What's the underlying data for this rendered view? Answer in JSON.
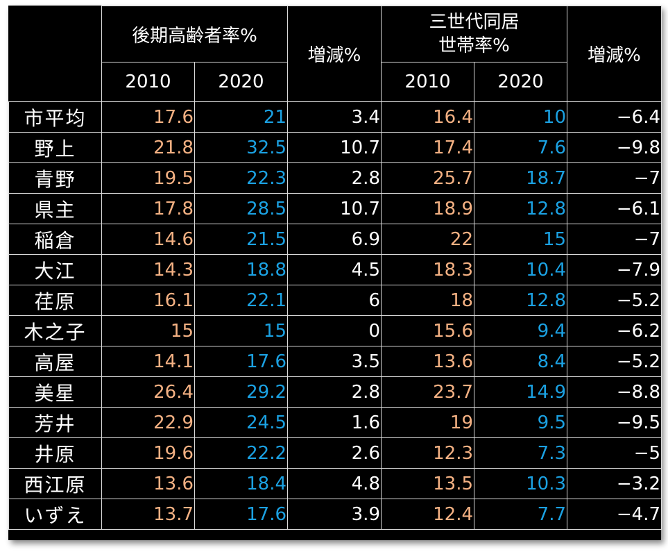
{
  "headers": {
    "group1": "後期高齢者率%",
    "change1": "増減%",
    "group2_line1": "三世代同居",
    "group2_line2": "世帯率%",
    "change2": "増減%",
    "year1": "2010",
    "year2": "2020",
    "year3": "2010",
    "year4": "2020"
  },
  "colors": {
    "background": "#000000",
    "text": "#ffffff",
    "year_2010": "#f4b183",
    "year_2020": "#1ba1e2",
    "grid": "#d9d9d9"
  },
  "rows": [
    {
      "name": "市平均",
      "a2010": "17.6",
      "a2020": "21",
      "achg": "3.4",
      "b2010": "16.4",
      "b2020": "10",
      "bchg": "−6.4"
    },
    {
      "name": "野上",
      "a2010": "21.8",
      "a2020": "32.5",
      "achg": "10.7",
      "b2010": "17.4",
      "b2020": "7.6",
      "bchg": "−9.8"
    },
    {
      "name": "青野",
      "a2010": "19.5",
      "a2020": "22.3",
      "achg": "2.8",
      "b2010": "25.7",
      "b2020": "18.7",
      "bchg": "−7"
    },
    {
      "name": "県主",
      "a2010": "17.8",
      "a2020": "28.5",
      "achg": "10.7",
      "b2010": "18.9",
      "b2020": "12.8",
      "bchg": "−6.1"
    },
    {
      "name": "稲倉",
      "a2010": "14.6",
      "a2020": "21.5",
      "achg": "6.9",
      "b2010": "22",
      "b2020": "15",
      "bchg": "−7"
    },
    {
      "name": "大江",
      "a2010": "14.3",
      "a2020": "18.8",
      "achg": "4.5",
      "b2010": "18.3",
      "b2020": "10.4",
      "bchg": "−7.9"
    },
    {
      "name": "荏原",
      "a2010": "16.1",
      "a2020": "22.1",
      "achg": "6",
      "b2010": "18",
      "b2020": "12.8",
      "bchg": "−5.2"
    },
    {
      "name": "木之子",
      "a2010": "15",
      "a2020": "15",
      "achg": "0",
      "b2010": "15.6",
      "b2020": "9.4",
      "bchg": "−6.2"
    },
    {
      "name": "高屋",
      "a2010": "14.1",
      "a2020": "17.6",
      "achg": "3.5",
      "b2010": "13.6",
      "b2020": "8.4",
      "bchg": "−5.2"
    },
    {
      "name": "美星",
      "a2010": "26.4",
      "a2020": "29.2",
      "achg": "2.8",
      "b2010": "23.7",
      "b2020": "14.9",
      "bchg": "−8.8"
    },
    {
      "name": "芳井",
      "a2010": "22.9",
      "a2020": "24.5",
      "achg": "1.6",
      "b2010": "19",
      "b2020": "9.5",
      "bchg": "−9.5"
    },
    {
      "name": "井原",
      "a2010": "19.6",
      "a2020": "22.2",
      "achg": "2.6",
      "b2010": "12.3",
      "b2020": "7.3",
      "bchg": "−5"
    },
    {
      "name": "西江原",
      "a2010": "13.6",
      "a2020": "18.4",
      "achg": "4.8",
      "b2010": "13.5",
      "b2020": "10.3",
      "bchg": "−3.2"
    },
    {
      "name": "いずえ",
      "a2010": "13.7",
      "a2020": "17.6",
      "achg": "3.9",
      "b2010": "12.4",
      "b2020": "7.7",
      "bchg": "−4.7"
    }
  ]
}
